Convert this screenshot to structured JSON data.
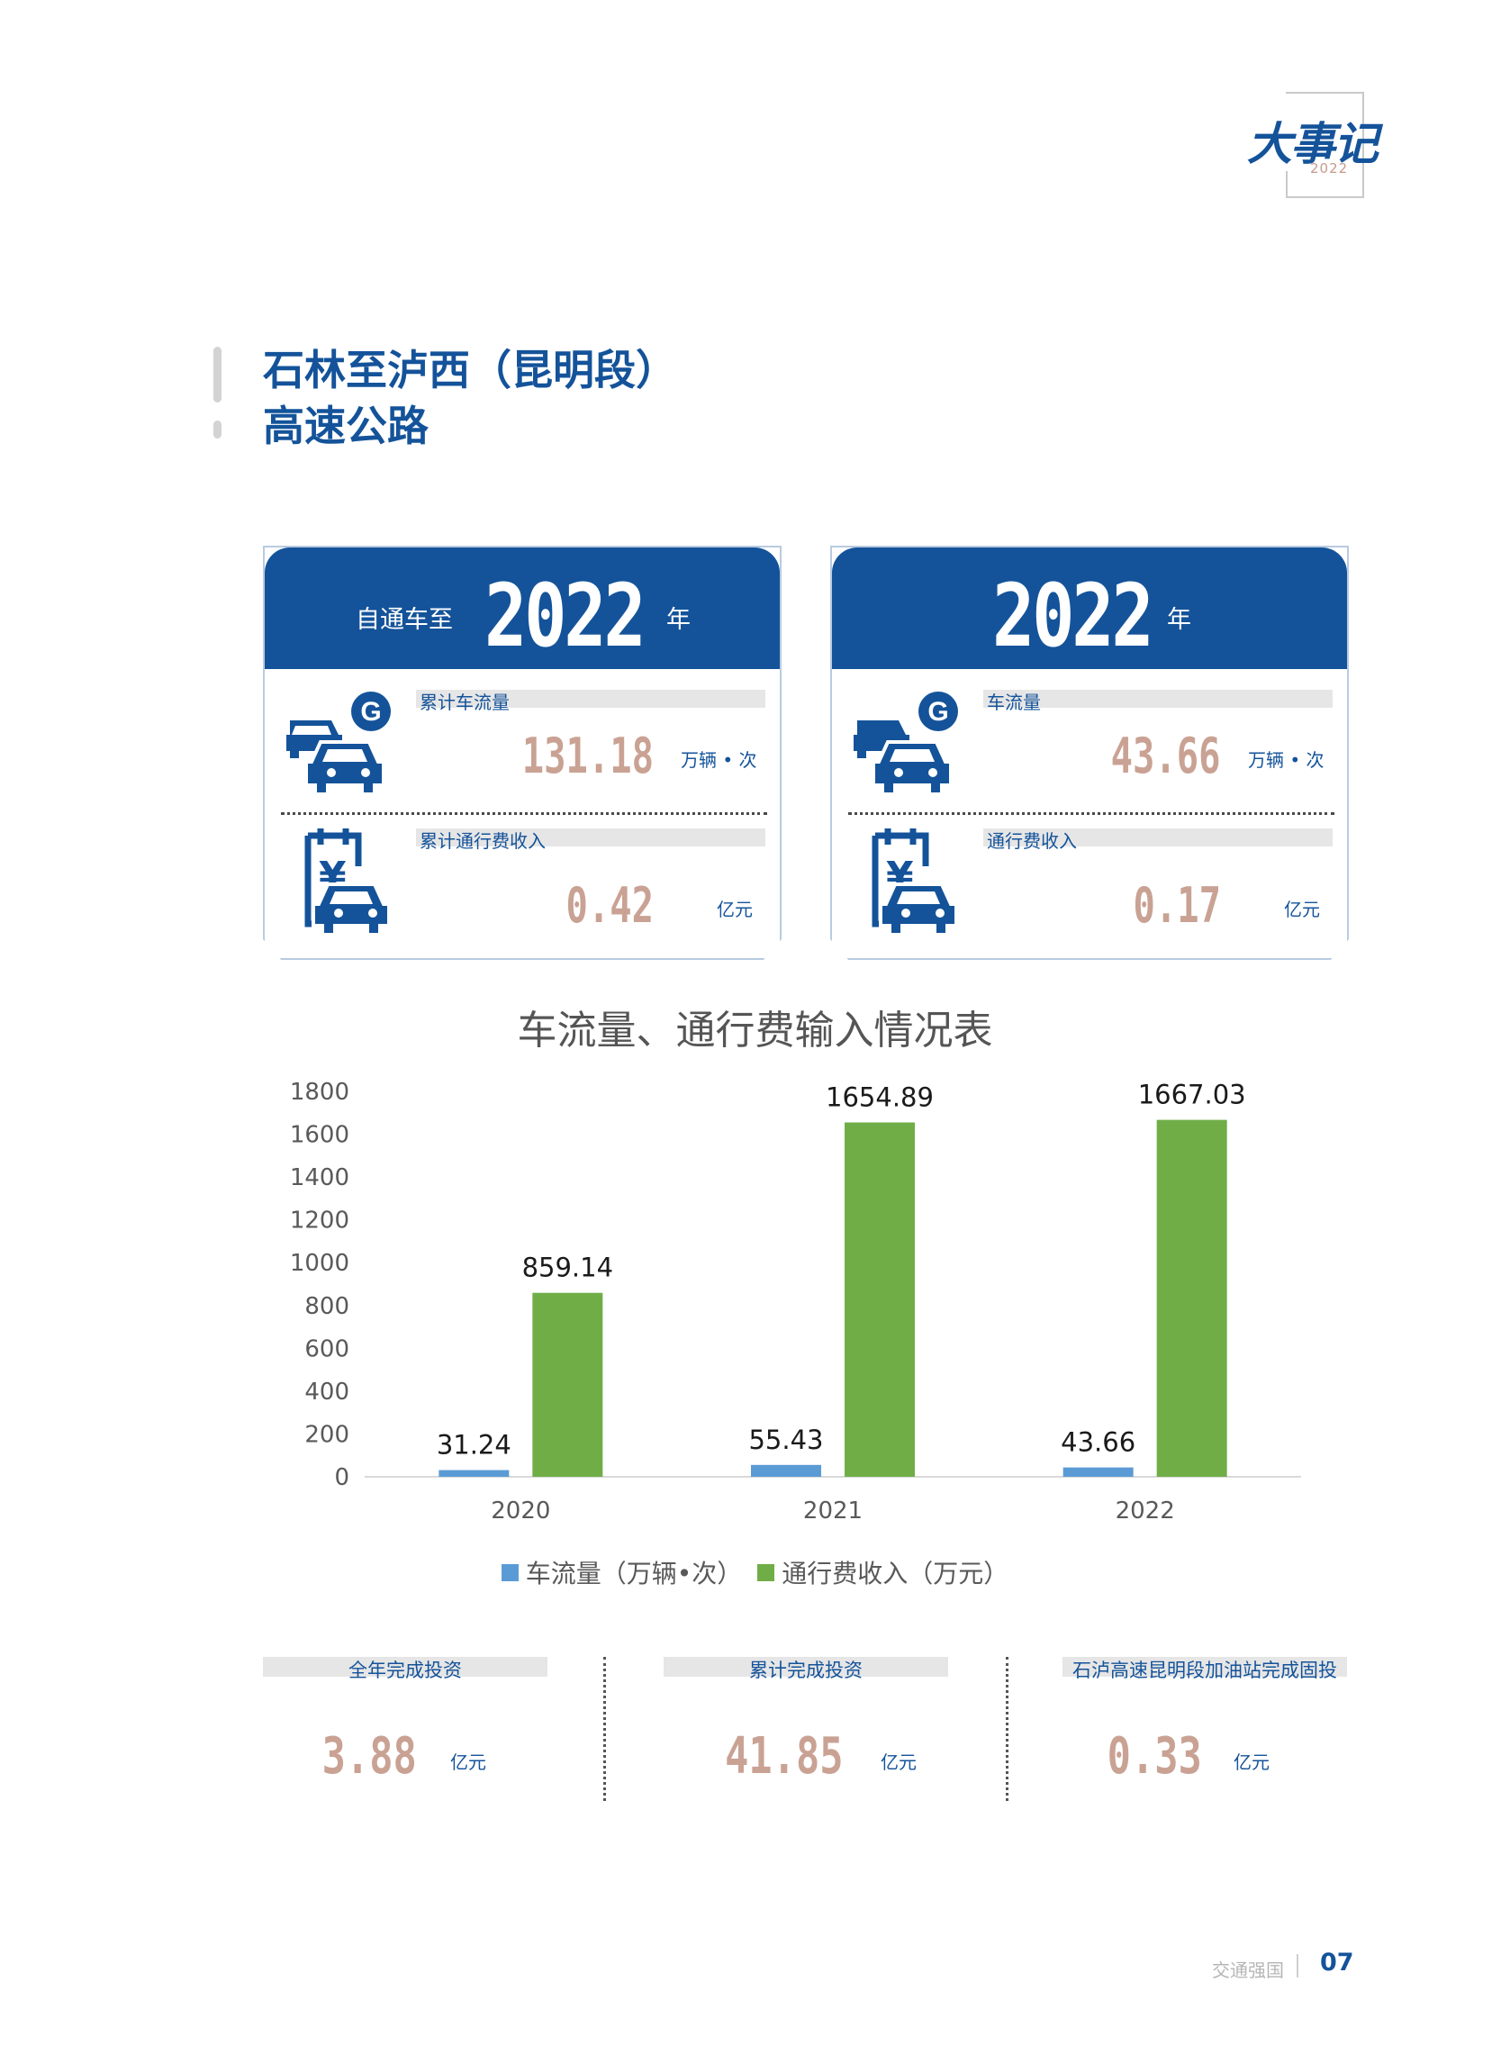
{
  "badge": {
    "title": "大事记",
    "year": "2022"
  },
  "page_title": {
    "line1": "石林至泸西（昆明段）",
    "line2": "高速公路"
  },
  "cards": [
    {
      "prefix": "自通车至",
      "year": "2022",
      "year_unit": "年",
      "metrics": [
        {
          "label": "累计车流量",
          "value": "131.18",
          "unit": "万辆 • 次",
          "icon": "cars-highway-icon"
        },
        {
          "label": "累计通行费收入",
          "value": "0.42",
          "unit": "亿元",
          "icon": "toll-payment-icon"
        }
      ]
    },
    {
      "prefix": "",
      "year": "2022",
      "year_unit": "年",
      "metrics": [
        {
          "label": "车流量",
          "value": "43.66",
          "unit": "万辆 • 次",
          "icon": "cars-highway-icon"
        },
        {
          "label": "通行费收入",
          "value": "0.17",
          "unit": "亿元",
          "icon": "toll-payment-icon"
        }
      ]
    }
  ],
  "chart_data": {
    "type": "bar",
    "title": "车流量、通行费输入情况表",
    "categories": [
      "2020",
      "2021",
      "2022"
    ],
    "series": [
      {
        "name": "车流量（万辆•次）",
        "values": [
          31.24,
          55.43,
          43.66
        ],
        "color": "#5b9bd5"
      },
      {
        "name": "通行费收入（万元）",
        "values": [
          859.14,
          1654.89,
          1667.03
        ],
        "color": "#70ad47"
      }
    ],
    "y_ticks": [
      "0",
      "200",
      "400",
      "600",
      "800",
      "1000",
      "1200",
      "1400",
      "1600",
      "1800"
    ],
    "ylim": [
      0,
      1800
    ],
    "grid": false,
    "legend": "bottom"
  },
  "stats": [
    {
      "label": "全年完成投资",
      "value": "3.88",
      "unit": "亿元"
    },
    {
      "label": "累计完成投资",
      "value": "41.85",
      "unit": "亿元"
    },
    {
      "label": "石泸高速昆明段加油站完成固投",
      "value": "0.33",
      "unit": "亿元"
    }
  ],
  "footer": {
    "text": "交通强国",
    "page": "07"
  },
  "colors": {
    "primary": "#14539a",
    "value": "#c9a294",
    "label_bg": "#e6e6e6"
  }
}
